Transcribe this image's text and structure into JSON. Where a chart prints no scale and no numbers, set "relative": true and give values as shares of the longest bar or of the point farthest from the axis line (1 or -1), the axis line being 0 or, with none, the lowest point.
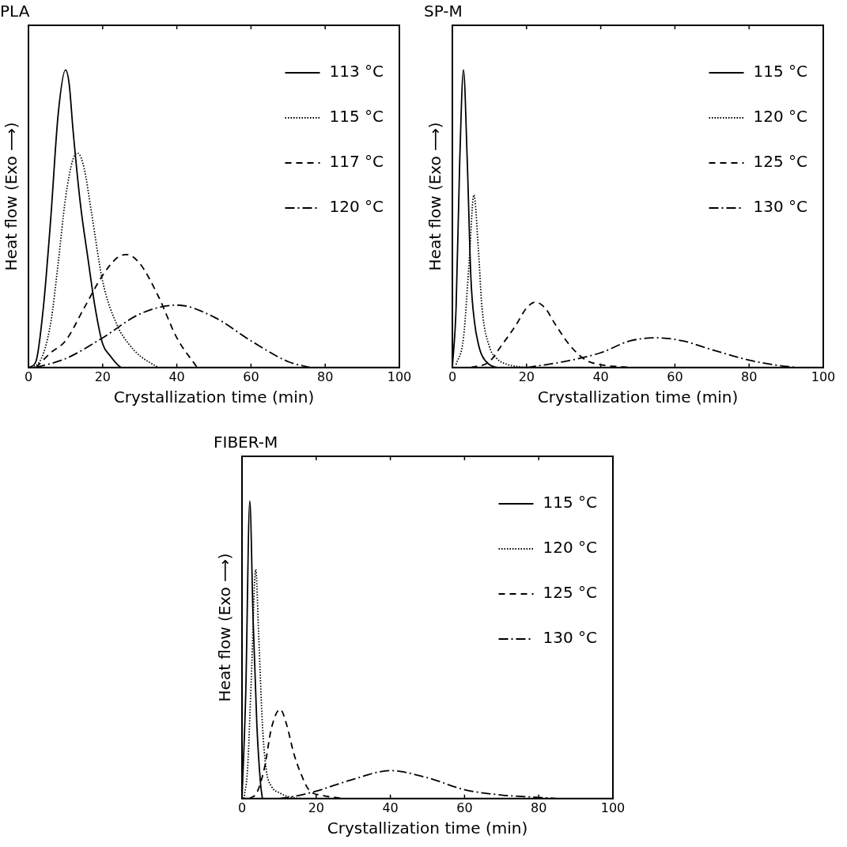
{
  "chart_data": [
    {
      "type": "line",
      "title": "PLA",
      "xlabel": "Crystallization time (min)",
      "ylabel": "Heat flow (Exo ⟶)",
      "relative": true,
      "xlim": [
        0,
        100
      ],
      "xticks": [
        0,
        20,
        40,
        60,
        80,
        100
      ],
      "grid": false,
      "legend": "top right",
      "marker": "none",
      "series": [
        {
          "name": "113 °C",
          "color": "#000000",
          "line_style": "solid",
          "x": [
            0,
            2,
            4,
            6,
            8,
            10,
            11,
            12,
            14,
            16,
            18,
            20,
            22,
            24,
            25
          ],
          "values": [
            0,
            0.02,
            0.2,
            0.5,
            0.85,
            1,
            0.95,
            0.8,
            0.55,
            0.37,
            0.2,
            0.08,
            0.04,
            0.01,
            0
          ]
        },
        {
          "name": "115 °C",
          "color": "#000000",
          "line_style": "dotted",
          "x": [
            0,
            3,
            6,
            8,
            10,
            12,
            13.3,
            15,
            17,
            20,
            24,
            27,
            30,
            35
          ],
          "values": [
            0,
            0.02,
            0.15,
            0.35,
            0.57,
            0.7,
            0.72,
            0.67,
            0.52,
            0.29,
            0.14,
            0.08,
            0.04,
            0
          ]
        },
        {
          "name": "117 °C",
          "color": "#000000",
          "line_style": "dashed",
          "x": [
            2,
            6,
            10,
            15,
            20,
            24,
            26.4,
            30,
            35,
            40,
            45.5
          ],
          "values": [
            0,
            0.05,
            0.09,
            0.2,
            0.31,
            0.37,
            0.38,
            0.35,
            0.24,
            0.1,
            0
          ]
        },
        {
          "name": "120 °C",
          "color": "#000000",
          "line_style": "dashdot",
          "x": [
            2,
            10,
            20,
            30,
            40,
            50,
            60,
            70,
            76
          ],
          "values": [
            0,
            0.03,
            0.1,
            0.18,
            0.21,
            0.17,
            0.09,
            0.02,
            0
          ]
        }
      ]
    },
    {
      "type": "line",
      "title": "SP-M",
      "xlabel": "Crystallization time (min)",
      "ylabel": "Heat flow (Exo ⟶)",
      "relative": true,
      "xlim": [
        0,
        100
      ],
      "xticks": [
        0,
        20,
        40,
        60,
        80,
        100
      ],
      "grid": false,
      "legend": "top right",
      "marker": "none",
      "series": [
        {
          "name": "115 °C",
          "color": "#000000",
          "line_style": "solid",
          "x": [
            0,
            1,
            2,
            3,
            4,
            5,
            6,
            7,
            8,
            10,
            12
          ],
          "values": [
            0,
            0.2,
            0.7,
            1,
            0.7,
            0.3,
            0.15,
            0.08,
            0.04,
            0.01,
            0
          ]
        },
        {
          "name": "120 °C",
          "color": "#000000",
          "line_style": "dotted",
          "x": [
            1,
            3,
            4.5,
            5.8,
            7,
            8,
            10,
            12,
            15,
            20
          ],
          "values": [
            0.01,
            0.1,
            0.35,
            0.58,
            0.4,
            0.2,
            0.07,
            0.03,
            0.01,
            0
          ]
        },
        {
          "name": "125 °C",
          "color": "#000000",
          "line_style": "dashed",
          "x": [
            5,
            10,
            13,
            17,
            20,
            22.3,
            25,
            28,
            32,
            36,
            40,
            48
          ],
          "values": [
            0,
            0.02,
            0.07,
            0.14,
            0.2,
            0.22,
            0.2,
            0.14,
            0.07,
            0.025,
            0.01,
            0
          ]
        },
        {
          "name": "130 °C",
          "color": "#000000",
          "line_style": "dashdot",
          "x": [
            20,
            30,
            40,
            48,
            55,
            62,
            70,
            80,
            88,
            93
          ],
          "values": [
            0,
            0.02,
            0.05,
            0.09,
            0.1,
            0.09,
            0.06,
            0.025,
            0.007,
            0
          ]
        }
      ]
    },
    {
      "type": "line",
      "title": "FIBER-M",
      "xlabel": "Crystallization time (min)",
      "ylabel": "Heat flow (Exo ⟶)",
      "relative": true,
      "xlim": [
        0,
        100
      ],
      "xticks": [
        0,
        20,
        40,
        60,
        80,
        100
      ],
      "grid": false,
      "legend": "top right",
      "marker": "none",
      "series": [
        {
          "name": "115 °C",
          "color": "#000000",
          "line_style": "solid",
          "x": [
            0,
            1,
            2.1,
            3,
            4,
            5,
            5.5
          ],
          "values": [
            0,
            0.35,
            1,
            0.6,
            0.25,
            0.05,
            0
          ]
        },
        {
          "name": "120 °C",
          "color": "#000000",
          "line_style": "dotted",
          "x": [
            0.5,
            1.5,
            2.5,
            3.7,
            4.5,
            5.5,
            6.5,
            8,
            10,
            13,
            16
          ],
          "values": [
            0,
            0.1,
            0.4,
            0.77,
            0.55,
            0.25,
            0.1,
            0.04,
            0.02,
            0.005,
            0
          ]
        },
        {
          "name": "125 °C",
          "color": "#000000",
          "line_style": "dashed",
          "x": [
            2,
            4,
            6,
            8,
            10.3,
            12,
            14,
            16,
            18,
            22,
            28
          ],
          "values": [
            0,
            0.02,
            0.1,
            0.24,
            0.3,
            0.25,
            0.15,
            0.08,
            0.03,
            0.01,
            0
          ]
        },
        {
          "name": "130 °C",
          "color": "#000000",
          "line_style": "dashdot",
          "x": [
            10,
            15,
            20,
            30,
            40,
            50,
            60,
            70,
            80,
            85
          ],
          "values": [
            0,
            0.01,
            0.025,
            0.065,
            0.094,
            0.07,
            0.03,
            0.012,
            0.004,
            0
          ]
        }
      ]
    }
  ]
}
